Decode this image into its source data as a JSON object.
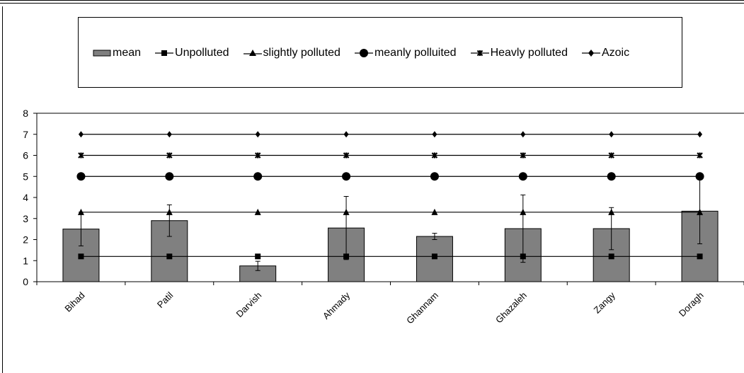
{
  "chart_data": {
    "type": "bar",
    "categories": [
      "Bihad",
      "Patil",
      "Darvish",
      "Ahmady",
      "Ghannam",
      "Ghazaleh",
      "Zangy",
      "Doragh"
    ],
    "ylim": [
      0,
      8
    ],
    "yticks": [
      "0",
      "1",
      "2",
      "3",
      "4",
      "5",
      "6",
      "7",
      "8"
    ],
    "grid": false,
    "legend_position": "top",
    "bar_series": {
      "name": "mean",
      "values": [
        2.5,
        2.9,
        0.75,
        2.55,
        2.15,
        2.52,
        2.52,
        3.35
      ],
      "error": [
        0.8,
        0.75,
        0.22,
        1.5,
        0.15,
        1.6,
        1.0,
        1.55
      ],
      "color": "#808080"
    },
    "line_series": [
      {
        "name": "Unpolluted",
        "values": [
          1.2,
          1.2,
          1.2,
          1.2,
          1.2,
          1.2,
          1.2,
          1.2
        ],
        "marker": "square"
      },
      {
        "name": "slightly polluted",
        "values": [
          3.3,
          3.3,
          3.3,
          3.3,
          3.3,
          3.3,
          3.3,
          3.3
        ],
        "marker": "triangle"
      },
      {
        "name": "meanly polluited",
        "values": [
          5,
          5,
          5,
          5,
          5,
          5,
          5,
          5
        ],
        "marker": "circle"
      },
      {
        "name": "Heavly polluted",
        "values": [
          6,
          6,
          6,
          6,
          6,
          6,
          6,
          6
        ],
        "marker": "star"
      },
      {
        "name": "Azoic",
        "values": [
          7,
          7,
          7,
          7,
          7,
          7,
          7,
          7
        ],
        "marker": "diamond"
      }
    ]
  }
}
